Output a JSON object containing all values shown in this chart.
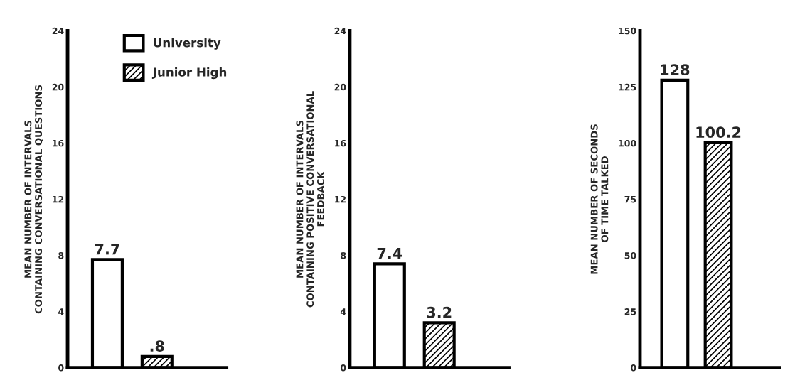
{
  "chart_data": [
    {
      "type": "bar",
      "categories": [
        null
      ],
      "ylabel": "MEAN NUMBER OF INTERVALS\nCONTAINING CONVERSATIONAL QUESTIONS",
      "ylim": [
        0,
        24
      ],
      "yticks": [
        0,
        4,
        8,
        12,
        16,
        20,
        24
      ],
      "legend": "top",
      "grid": false,
      "tick_labels": "y",
      "series": [
        {
          "name": "University",
          "color": "#ffffff",
          "values": [
            7.7
          ],
          "value_labels": [
            "7.7"
          ]
        },
        {
          "name": "Junior High",
          "color": "#000000",
          "values": [
            0.8
          ],
          "value_labels": [
            ".8"
          ]
        }
      ]
    },
    {
      "type": "bar",
      "categories": [
        null
      ],
      "ylabel": "MEAN NUMBER OF INTERVALS\nCONTAINING POSITIVE CONVERSATIONAL\nFEEDBACK",
      "ylim": [
        0,
        24
      ],
      "yticks": [
        0,
        4,
        8,
        12,
        16,
        20,
        24
      ],
      "grid": false,
      "tick_labels": "y",
      "series": [
        {
          "color": "#ffffff",
          "values": [
            7.4
          ],
          "value_labels": [
            "7.4"
          ]
        },
        {
          "color": "#000000",
          "values": [
            3.2
          ],
          "value_labels": [
            "3.2"
          ]
        }
      ]
    },
    {
      "type": "bar",
      "categories": [
        null
      ],
      "ylabel": "MEAN NUMBER OF SECONDS\nOF TIME TALKED",
      "ylim": [
        0,
        150
      ],
      "yticks": [
        0,
        25,
        50,
        75,
        100,
        125,
        150
      ],
      "grid": false,
      "tick_labels": "y",
      "series": [
        {
          "color": "#ffffff",
          "values": [
            128
          ],
          "value_labels": [
            "128"
          ]
        },
        {
          "color": "#000000",
          "values": [
            100.2
          ],
          "value_labels": [
            "100.2"
          ]
        }
      ]
    }
  ]
}
